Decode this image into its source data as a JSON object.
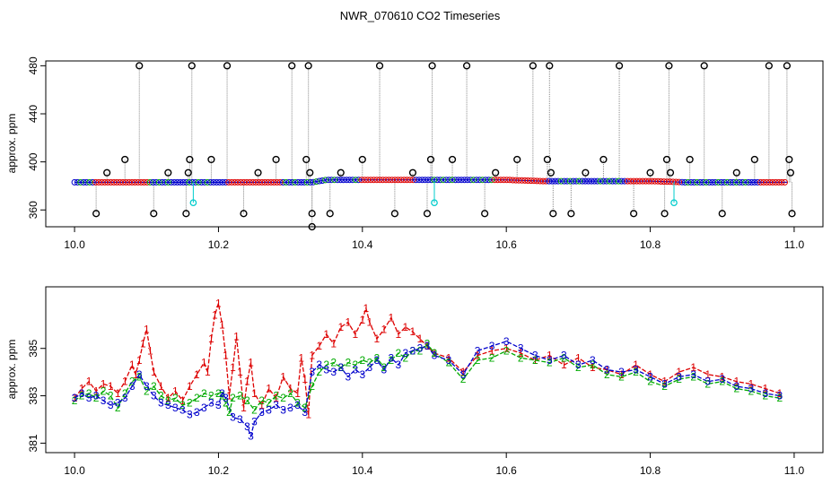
{
  "chart_data": [
    {
      "type": "line",
      "title": "NWR_070610  CO2 Timeseries",
      "ylabel": "approx. ppm",
      "xlim": [
        9.96,
        11.04
      ],
      "ylim": [
        346,
        484
      ],
      "xticks": [
        "10.0",
        "10.2",
        "10.4",
        "10.6",
        "10.8",
        "11.0"
      ],
      "xtick_values": [
        10.0,
        10.2,
        10.4,
        10.6,
        10.8,
        11.0
      ],
      "yticks": [
        "360",
        "400",
        "440",
        "480"
      ],
      "ytick_values": [
        360,
        400,
        440,
        480
      ],
      "grid": false,
      "colors": {
        "baseline": "#0000cc",
        "secondary": "#dd0000",
        "tertiary": "#00aa00",
        "flag": "#000000",
        "cyan": "#00cccc",
        "spike": "#888888"
      },
      "series": [
        {
          "x": [
            10.0,
            10.05,
            10.1,
            10.15,
            10.2,
            10.25,
            10.3,
            10.33,
            10.35,
            10.4,
            10.45,
            10.5,
            10.55,
            10.6,
            10.65,
            10.7,
            10.75,
            10.8,
            10.85,
            10.9,
            10.95,
            10.99
          ],
          "values": [
            383,
            383,
            383,
            383,
            383,
            383,
            383,
            383,
            385,
            385,
            385,
            385,
            385,
            385,
            384,
            384,
            384,
            384,
            383,
            383,
            383,
            383
          ]
        }
      ],
      "flag_points": [
        {
          "x": 10.03,
          "y": 357
        },
        {
          "x": 10.045,
          "y": 391
        },
        {
          "x": 10.07,
          "y": 402
        },
        {
          "x": 10.09,
          "y": 480
        },
        {
          "x": 10.11,
          "y": 357
        },
        {
          "x": 10.13,
          "y": 391
        },
        {
          "x": 10.155,
          "y": 357
        },
        {
          "x": 10.158,
          "y": 391
        },
        {
          "x": 10.16,
          "y": 402
        },
        {
          "x": 10.163,
          "y": 480
        },
        {
          "x": 10.19,
          "y": 402
        },
        {
          "x": 10.212,
          "y": 480
        },
        {
          "x": 10.235,
          "y": 357
        },
        {
          "x": 10.255,
          "y": 391
        },
        {
          "x": 10.28,
          "y": 402
        },
        {
          "x": 10.302,
          "y": 480
        },
        {
          "x": 10.322,
          "y": 402
        },
        {
          "x": 10.325,
          "y": 480
        },
        {
          "x": 10.327,
          "y": 391
        },
        {
          "x": 10.33,
          "y": 357
        },
        {
          "x": 10.33,
          "y": 346
        },
        {
          "x": 10.355,
          "y": 357
        },
        {
          "x": 10.37,
          "y": 391
        },
        {
          "x": 10.4,
          "y": 402
        },
        {
          "x": 10.424,
          "y": 480
        },
        {
          "x": 10.445,
          "y": 357
        },
        {
          "x": 10.47,
          "y": 391
        },
        {
          "x": 10.49,
          "y": 357
        },
        {
          "x": 10.495,
          "y": 402
        },
        {
          "x": 10.497,
          "y": 480
        },
        {
          "x": 10.525,
          "y": 402
        },
        {
          "x": 10.545,
          "y": 480
        },
        {
          "x": 10.57,
          "y": 357
        },
        {
          "x": 10.585,
          "y": 391
        },
        {
          "x": 10.615,
          "y": 402
        },
        {
          "x": 10.637,
          "y": 480
        },
        {
          "x": 10.657,
          "y": 402
        },
        {
          "x": 10.66,
          "y": 480
        },
        {
          "x": 10.662,
          "y": 391
        },
        {
          "x": 10.665,
          "y": 357
        },
        {
          "x": 10.69,
          "y": 357
        },
        {
          "x": 10.71,
          "y": 391
        },
        {
          "x": 10.735,
          "y": 402
        },
        {
          "x": 10.757,
          "y": 480
        },
        {
          "x": 10.777,
          "y": 357
        },
        {
          "x": 10.8,
          "y": 391
        },
        {
          "x": 10.82,
          "y": 357
        },
        {
          "x": 10.823,
          "y": 402
        },
        {
          "x": 10.826,
          "y": 480
        },
        {
          "x": 10.828,
          "y": 391
        },
        {
          "x": 10.855,
          "y": 402
        },
        {
          "x": 10.875,
          "y": 480
        },
        {
          "x": 10.9,
          "y": 357
        },
        {
          "x": 10.92,
          "y": 391
        },
        {
          "x": 10.945,
          "y": 402
        },
        {
          "x": 10.965,
          "y": 480
        },
        {
          "x": 10.99,
          "y": 480
        },
        {
          "x": 10.993,
          "y": 402
        },
        {
          "x": 10.995,
          "y": 391
        },
        {
          "x": 10.997,
          "y": 357
        }
      ],
      "cyan_points": [
        {
          "x": 10.165,
          "y": 366
        },
        {
          "x": 10.5,
          "y": 366
        },
        {
          "x": 10.833,
          "y": 366
        }
      ]
    },
    {
      "type": "line",
      "ylabel": "approx. ppm",
      "xlim": [
        9.96,
        11.04
      ],
      "ylim": [
        380.6,
        387.6
      ],
      "xticks": [
        "10.0",
        "10.2",
        "10.4",
        "10.6",
        "10.8",
        "11.0"
      ],
      "xtick_values": [
        10.0,
        10.2,
        10.4,
        10.6,
        10.8,
        11.0
      ],
      "yticks": [
        "381",
        "383",
        "385"
      ],
      "ytick_values": [
        381,
        383,
        385
      ],
      "grid": false,
      "colors": {
        "series_1": "#dd0000",
        "series_2": "#00aa00",
        "series_3": "#0000cc"
      },
      "series": [
        {
          "label": "1",
          "x": [
            10.0,
            10.01,
            10.02,
            10.03,
            10.04,
            10.05,
            10.06,
            10.07,
            10.08,
            10.085,
            10.09,
            10.095,
            10.1,
            10.105,
            10.11,
            10.12,
            10.13,
            10.14,
            10.15,
            10.16,
            10.17,
            10.18,
            10.185,
            10.19,
            10.195,
            10.2,
            10.205,
            10.21,
            10.215,
            10.22,
            10.225,
            10.23,
            10.235,
            10.24,
            10.245,
            10.25,
            10.26,
            10.27,
            10.28,
            10.29,
            10.3,
            10.31,
            10.315,
            10.32,
            10.325,
            10.33,
            10.34,
            10.35,
            10.36,
            10.37,
            10.38,
            10.39,
            10.4,
            10.405,
            10.41,
            10.42,
            10.43,
            10.44,
            10.45,
            10.46,
            10.47,
            10.48,
            10.49,
            10.5,
            10.52,
            10.54,
            10.56,
            10.58,
            10.6,
            10.62,
            10.64,
            10.66,
            10.68,
            10.7,
            10.72,
            10.74,
            10.76,
            10.78,
            10.8,
            10.82,
            10.84,
            10.86,
            10.88,
            10.9,
            10.92,
            10.94,
            10.96,
            10.98
          ],
          "values": [
            382.9,
            383.3,
            383.6,
            383.2,
            383.5,
            383.4,
            383.1,
            383.6,
            384.3,
            383.9,
            384.5,
            385.2,
            385.8,
            384.9,
            384.0,
            383.4,
            382.9,
            383.2,
            382.8,
            383.4,
            383.9,
            384.4,
            384.0,
            385.4,
            386.4,
            386.9,
            386.0,
            384.7,
            383.0,
            384.2,
            385.5,
            384.0,
            382.5,
            383.6,
            384.4,
            383.1,
            382.6,
            383.3,
            382.9,
            383.8,
            383.3,
            383.1,
            384.6,
            383.7,
            382.2,
            384.7,
            385.1,
            385.6,
            385.2,
            385.9,
            386.1,
            385.6,
            386.2,
            386.7,
            386.1,
            385.4,
            385.8,
            386.3,
            385.6,
            385.9,
            385.7,
            385.4,
            385.1,
            384.8,
            384.6,
            384.0,
            384.7,
            384.9,
            385.0,
            384.8,
            384.5,
            384.7,
            384.3,
            384.6,
            384.2,
            384.1,
            383.9,
            384.3,
            383.9,
            383.6,
            384.0,
            384.2,
            383.9,
            383.8,
            383.6,
            383.5,
            383.3,
            383.1
          ]
        },
        {
          "label": "2",
          "x": [
            10.0,
            10.01,
            10.02,
            10.03,
            10.04,
            10.05,
            10.06,
            10.07,
            10.08,
            10.09,
            10.1,
            10.11,
            10.12,
            10.13,
            10.14,
            10.15,
            10.16,
            10.17,
            10.18,
            10.19,
            10.2,
            10.205,
            10.21,
            10.215,
            10.22,
            10.23,
            10.24,
            10.25,
            10.26,
            10.27,
            10.28,
            10.29,
            10.3,
            10.31,
            10.32,
            10.33,
            10.34,
            10.35,
            10.36,
            10.37,
            10.38,
            10.39,
            10.4,
            10.41,
            10.42,
            10.43,
            10.44,
            10.45,
            10.46,
            10.47,
            10.48,
            10.49,
            10.5,
            10.52,
            10.54,
            10.56,
            10.58,
            10.6,
            10.62,
            10.64,
            10.66,
            10.68,
            10.7,
            10.72,
            10.74,
            10.76,
            10.78,
            10.8,
            10.82,
            10.84,
            10.86,
            10.88,
            10.9,
            10.92,
            10.94,
            10.96,
            10.98
          ],
          "values": [
            382.8,
            383.0,
            383.1,
            382.9,
            383.2,
            383.0,
            382.5,
            383.1,
            383.6,
            383.8,
            383.2,
            383.4,
            383.0,
            382.8,
            382.9,
            382.6,
            382.7,
            382.9,
            383.1,
            383.0,
            383.1,
            383.0,
            382.7,
            382.3,
            382.9,
            383.0,
            382.8,
            382.4,
            382.8,
            382.7,
            383.0,
            382.9,
            383.1,
            382.7,
            382.5,
            383.4,
            384.0,
            384.3,
            384.4,
            384.2,
            384.4,
            384.3,
            384.5,
            384.4,
            384.6,
            384.2,
            384.5,
            384.8,
            384.6,
            384.9,
            384.9,
            385.2,
            384.8,
            384.4,
            383.7,
            384.5,
            384.6,
            384.9,
            384.6,
            384.5,
            384.4,
            384.6,
            384.2,
            384.3,
            383.9,
            383.8,
            384.0,
            383.6,
            383.4,
            383.7,
            383.8,
            383.5,
            383.6,
            383.3,
            383.2,
            383.0,
            382.9
          ]
        },
        {
          "label": "3",
          "x": [
            10.0,
            10.01,
            10.02,
            10.03,
            10.04,
            10.05,
            10.06,
            10.07,
            10.08,
            10.09,
            10.1,
            10.11,
            10.12,
            10.13,
            10.14,
            10.15,
            10.16,
            10.17,
            10.18,
            10.19,
            10.2,
            10.205,
            10.21,
            10.22,
            10.23,
            10.24,
            10.245,
            10.25,
            10.26,
            10.27,
            10.28,
            10.29,
            10.3,
            10.31,
            10.32,
            10.33,
            10.34,
            10.35,
            10.36,
            10.37,
            10.38,
            10.39,
            10.4,
            10.41,
            10.42,
            10.43,
            10.44,
            10.45,
            10.46,
            10.47,
            10.48,
            10.49,
            10.5,
            10.52,
            10.54,
            10.56,
            10.58,
            10.6,
            10.62,
            10.64,
            10.66,
            10.68,
            10.7,
            10.72,
            10.74,
            10.76,
            10.78,
            10.8,
            10.82,
            10.84,
            10.86,
            10.88,
            10.9,
            10.92,
            10.94,
            10.96,
            10.98
          ],
          "values": [
            382.9,
            383.1,
            382.9,
            383.0,
            382.8,
            382.6,
            382.7,
            382.9,
            383.4,
            383.9,
            383.4,
            383.0,
            382.7,
            382.6,
            382.5,
            382.4,
            382.2,
            382.3,
            382.5,
            382.7,
            382.6,
            383.1,
            382.9,
            382.1,
            382.0,
            381.7,
            381.3,
            381.9,
            382.3,
            382.4,
            382.6,
            382.4,
            382.5,
            382.6,
            382.3,
            384.0,
            384.3,
            384.1,
            384.0,
            384.2,
            383.8,
            384.1,
            383.9,
            384.2,
            384.5,
            384.1,
            384.6,
            384.3,
            384.8,
            384.9,
            385.0,
            385.1,
            384.7,
            384.5,
            383.9,
            384.9,
            385.1,
            385.3,
            385.0,
            384.7,
            384.5,
            384.7,
            384.3,
            384.5,
            384.1,
            384.0,
            384.1,
            383.8,
            383.5,
            383.8,
            383.9,
            383.6,
            383.7,
            383.4,
            383.3,
            383.1,
            383.0
          ]
        }
      ]
    }
  ]
}
